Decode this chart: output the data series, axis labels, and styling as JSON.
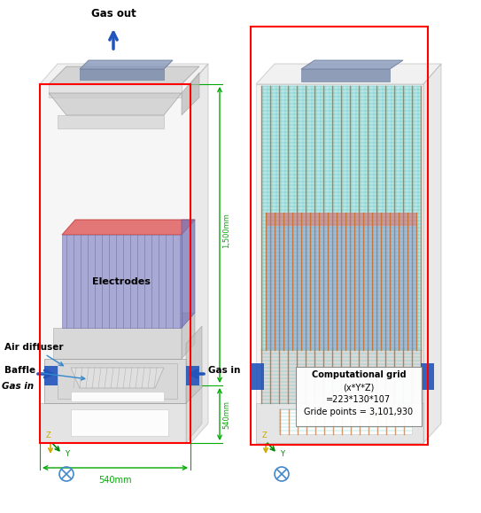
{
  "title": "",
  "background_color": "#ffffff",
  "fig_width": 5.43,
  "fig_height": 5.79,
  "dpi": 100,
  "left_panel": {
    "label_gas_out": "Gas out",
    "label_electrodes": "Electrodes",
    "label_air_diffuser": "Air diffuser",
    "label_baffle": "Baffle",
    "label_gas_in_left": "Gas in",
    "label_gas_in_right": "Gas in",
    "dim_1500": "1,500mm",
    "dim_540_side": "540mm",
    "dim_540_bottom": "540mm"
  },
  "right_panel": {
    "label_comp_grid": "Computational grid",
    "label_xyz": "(x*Y*Z)",
    "label_dims": "=223*130*107",
    "label_points": "Gride points = 3,101,930"
  },
  "colors": {
    "red_box": "#ff0000",
    "green_dim": "#00aa00",
    "blue_arrow": "#2255bb",
    "electrode_red": "#e06060",
    "electrode_blue": "#8888cc",
    "box_gray": "#d0d0d0",
    "grid_teal": "#50c8c8",
    "grid_orange": "#c87030",
    "blue_gas_in": "#2255bb",
    "annotation_line": "#3388cc",
    "white_box": "#ffffff",
    "axis_yellow": "#ccaa00",
    "axis_green": "#008800",
    "axis_blue": "#4488cc"
  }
}
